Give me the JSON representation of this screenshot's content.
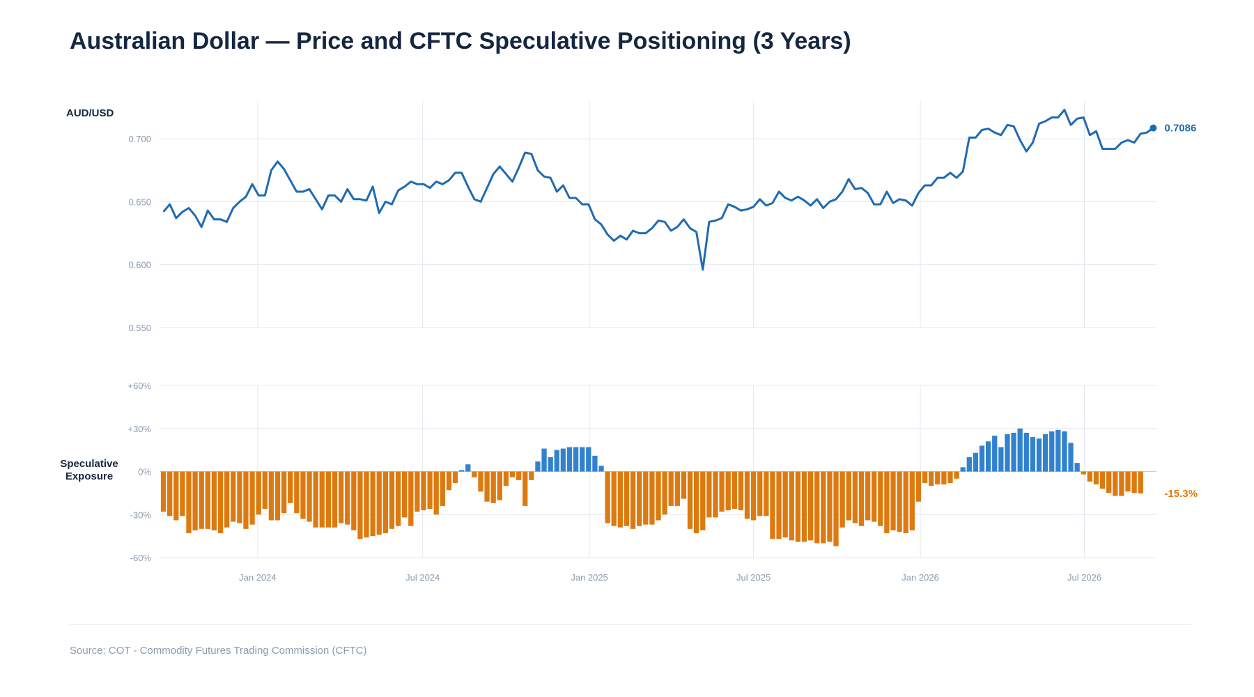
{
  "title": "Australian Dollar — Price and CFTC Speculative Positioning (3 Years)",
  "source": "Source: COT - Commodity Futures Trading Commission (CFTC)",
  "colors": {
    "price_line": "#1f6bb0",
    "long_bar": "#3182ce",
    "short_bar": "#dd7a0f",
    "grid": "#e2e8f0",
    "tick_text": "#8a9bb0",
    "label_text": "#15263f"
  },
  "chart_data": [
    {
      "type": "line",
      "ylabel": "AUD/USD",
      "ylim": [
        0.55,
        0.73
      ],
      "yticks": [
        "0.700",
        "0.650",
        "0.600",
        "0.550"
      ],
      "ytick_values": [
        0.7,
        0.65,
        0.6,
        0.55
      ],
      "grid": true,
      "x_start": "2023-09-19",
      "x_step_days": 7,
      "last_value_label": "0.7086",
      "series": [
        {
          "values": [
            0.642,
            0.648,
            0.637,
            0.642,
            0.645,
            0.639,
            0.63,
            0.643,
            0.636,
            0.636,
            0.634,
            0.645,
            0.65,
            0.654,
            0.664,
            0.655,
            0.655,
            0.675,
            0.682,
            0.676,
            0.667,
            0.658,
            0.658,
            0.66,
            0.652,
            0.644,
            0.655,
            0.655,
            0.65,
            0.66,
            0.652,
            0.652,
            0.651,
            0.662,
            0.641,
            0.65,
            0.648,
            0.659,
            0.662,
            0.666,
            0.664,
            0.664,
            0.661,
            0.666,
            0.664,
            0.667,
            0.673,
            0.673,
            0.662,
            0.652,
            0.65,
            0.661,
            0.672,
            0.678,
            0.672,
            0.666,
            0.677,
            0.689,
            0.688,
            0.675,
            0.67,
            0.669,
            0.658,
            0.663,
            0.653,
            0.653,
            0.648,
            0.648,
            0.636,
            0.632,
            0.624,
            0.619,
            0.623,
            0.62,
            0.627,
            0.625,
            0.625,
            0.629,
            0.635,
            0.634,
            0.627,
            0.63,
            0.636,
            0.629,
            0.626,
            0.596,
            0.634,
            0.635,
            0.637,
            0.648,
            0.646,
            0.643,
            0.644,
            0.646,
            0.652,
            0.647,
            0.649,
            0.658,
            0.653,
            0.651,
            0.654,
            0.651,
            0.647,
            0.652,
            0.645,
            0.65,
            0.652,
            0.658,
            0.668,
            0.66,
            0.661,
            0.657,
            0.648,
            0.648,
            0.658,
            0.649,
            0.652,
            0.651,
            0.647,
            0.657,
            0.663,
            0.663,
            0.669,
            0.669,
            0.673,
            0.669,
            0.674,
            0.701,
            0.701,
            0.707,
            0.708,
            0.705,
            0.703,
            0.711,
            0.71,
            0.699,
            0.69,
            0.697,
            0.712,
            0.714,
            0.717,
            0.717,
            0.723,
            0.711,
            0.716,
            0.717,
            0.703,
            0.706,
            0.692,
            0.692,
            0.692,
            0.697,
            0.699,
            0.697,
            0.704,
            0.705,
            0.7086
          ]
        }
      ]
    },
    {
      "type": "bar",
      "ylabel": "Speculative Exposure",
      "ylim": [
        -60,
        60
      ],
      "yticks": [
        "+60%",
        "+30%",
        "0%",
        "-30%",
        "-60%"
      ],
      "ytick_values": [
        60,
        30,
        0,
        -30,
        -60
      ],
      "grid": true,
      "x_start": "2023-09-19",
      "x_step_days": 7,
      "xtick_labels": [
        "Jan 2024",
        "Jul 2024",
        "Jan 2025",
        "Jul 2025",
        "Jan 2026",
        "Jul 2026"
      ],
      "xtick_dates": [
        "2024-01-01",
        "2024-07-01",
        "2025-01-01",
        "2025-07-01",
        "2026-01-01",
        "2026-07-01"
      ],
      "last_value_label": "-15.3%",
      "series": [
        {
          "values": [
            -28,
            -31,
            -34,
            -31,
            -43,
            -41,
            -40,
            -40,
            -41,
            -43,
            -39,
            -35,
            -36,
            -40,
            -37,
            -30,
            -26,
            -34,
            -34,
            -29,
            -22,
            -29,
            -33,
            -35,
            -39,
            -39,
            -39,
            -39,
            -36,
            -37,
            -41,
            -47,
            -46,
            -45,
            -44,
            -43,
            -40,
            -38,
            -32,
            -38,
            -28,
            -27,
            -26,
            -30,
            -24,
            -13,
            -8,
            1,
            5,
            -4,
            -14,
            -21,
            -22,
            -20,
            -10,
            -4,
            -6,
            -24,
            -6,
            7,
            16,
            10,
            15,
            16,
            17,
            17,
            17,
            17,
            11,
            4,
            -36,
            -38,
            -39,
            -38,
            -40,
            -38,
            -37,
            -37,
            -34,
            -30,
            -24,
            -24,
            -19,
            -40,
            -43,
            -41,
            -32,
            -32,
            -28,
            -27,
            -26,
            -27,
            -33,
            -34,
            -31,
            -31,
            -47,
            -47,
            -46,
            -48,
            -49,
            -49,
            -48,
            -50,
            -50,
            -49,
            -52,
            -39,
            -34,
            -36,
            -38,
            -34,
            -35,
            -38,
            -43,
            -41,
            -42,
            -43,
            -41,
            -21,
            -8,
            -10,
            -9,
            -9,
            -8,
            -5,
            3,
            10,
            13,
            18,
            21,
            25,
            17,
            26,
            27,
            30,
            27,
            24,
            23,
            26,
            28,
            29,
            28,
            20,
            6,
            -2,
            -7,
            -9,
            -12,
            -15,
            -17,
            -17,
            -14,
            -15,
            -15.3
          ]
        }
      ]
    }
  ]
}
